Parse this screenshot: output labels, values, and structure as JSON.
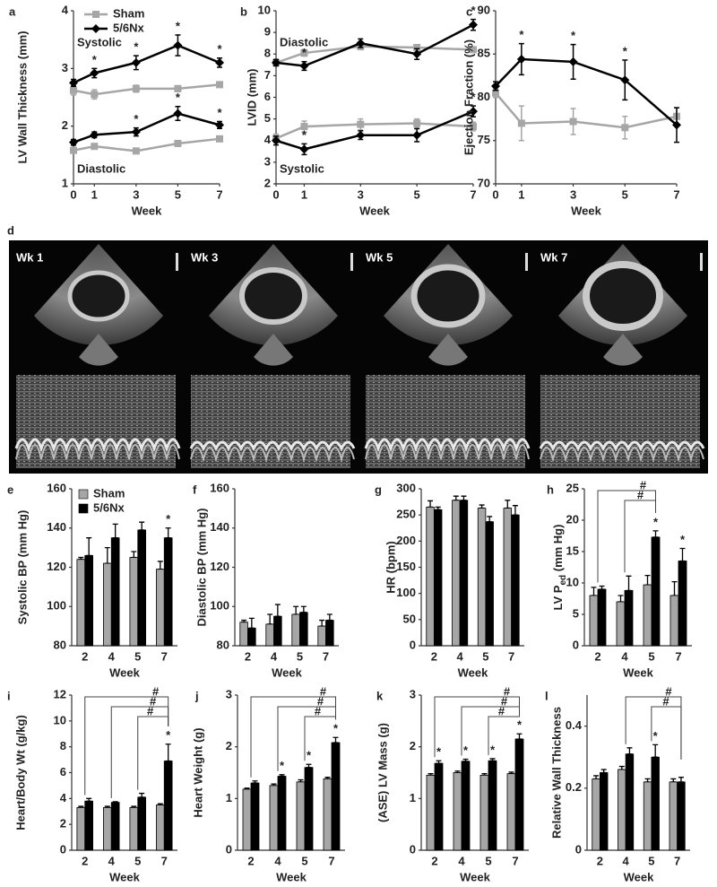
{
  "chart_data": [
    {
      "type": "line",
      "panel": "a",
      "ylabel": "LV Wall Thickness (mm)",
      "xlabel": "Week",
      "x": [
        0,
        1,
        3,
        5,
        7
      ],
      "xlim": [
        0,
        7
      ],
      "xticks": [
        0,
        1,
        3,
        5,
        7
      ],
      "ylim": [
        1,
        4
      ],
      "yticks": [
        1,
        2,
        3,
        4
      ],
      "star": "*",
      "legend": "top-left",
      "groups": [
        {
          "label": "Systolic",
          "series": [
            {
              "name": "Sham",
              "color": "#a6a6a6",
              "marker": "square",
              "values": [
                2.62,
                2.55,
                2.65,
                2.65,
                2.72
              ],
              "errors": [
                0.08,
                0.08,
                0.06,
                0.05,
                0.04
              ],
              "significant": [
                false,
                false,
                false,
                false,
                false
              ]
            },
            {
              "name": "5/6Nx",
              "color": "#000000",
              "marker": "diamond",
              "values": [
                2.75,
                2.92,
                3.1,
                3.4,
                3.1
              ],
              "errors": [
                0.06,
                0.08,
                0.12,
                0.18,
                0.08
              ],
              "significant": [
                false,
                true,
                true,
                true,
                true
              ]
            }
          ]
        },
        {
          "label": "Diastolic",
          "series": [
            {
              "color": "#a6a6a6",
              "marker": "square",
              "values": [
                1.58,
                1.65,
                1.57,
                1.7,
                1.78
              ],
              "errors": [
                0.03,
                0.03,
                0.03,
                0.03,
                0.03
              ],
              "significant": [
                false,
                false,
                false,
                false,
                false
              ]
            },
            {
              "color": "#000000",
              "marker": "diamond",
              "values": [
                1.72,
                1.85,
                1.9,
                2.22,
                2.02
              ],
              "errors": [
                0.05,
                0.05,
                0.07,
                0.12,
                0.06
              ],
              "significant": [
                false,
                false,
                true,
                true,
                true
              ]
            }
          ]
        }
      ]
    },
    {
      "type": "line",
      "panel": "b",
      "ylabel": "LVID (mm)",
      "xlabel": "Week",
      "x": [
        0,
        1,
        3,
        5,
        7
      ],
      "xlim": [
        0,
        7
      ],
      "xticks": [
        0,
        1,
        3,
        5,
        7
      ],
      "ylim": [
        2,
        10
      ],
      "yticks": [
        2,
        3,
        4,
        5,
        6,
        7,
        8,
        9,
        10
      ],
      "star": "*",
      "groups": [
        {
          "label": "Diastolic",
          "series": [
            {
              "color": "#a6a6a6",
              "marker": "square",
              "values": [
                7.6,
                8.05,
                8.35,
                8.3,
                8.2
              ],
              "errors": [
                0.1,
                0.15,
                0.15,
                0.1,
                0.1
              ],
              "significant": [
                false,
                false,
                false,
                false,
                false
              ]
            },
            {
              "color": "#000000",
              "marker": "diamond",
              "values": [
                7.6,
                7.45,
                8.5,
                8.0,
                9.35
              ],
              "errors": [
                0.15,
                0.2,
                0.2,
                0.25,
                0.25
              ],
              "significant": [
                false,
                true,
                false,
                false,
                true
              ]
            }
          ]
        },
        {
          "label": "Systolic",
          "series": [
            {
              "color": "#a6a6a6",
              "marker": "square",
              "values": [
                4.1,
                4.65,
                4.75,
                4.8,
                4.65
              ],
              "errors": [
                0.2,
                0.25,
                0.25,
                0.2,
                0.2
              ],
              "significant": [
                false,
                false,
                false,
                false,
                false
              ]
            },
            {
              "color": "#000000",
              "marker": "diamond",
              "values": [
                4.0,
                3.6,
                4.25,
                4.25,
                5.35
              ],
              "errors": [
                0.2,
                0.25,
                0.2,
                0.3,
                0.25
              ],
              "significant": [
                false,
                true,
                false,
                false,
                true
              ]
            }
          ]
        }
      ]
    },
    {
      "type": "line",
      "panel": "c",
      "ylabel": "Ejection Fraction (%)",
      "xlabel": "Week",
      "x": [
        0,
        1,
        3,
        5,
        7
      ],
      "xlim": [
        0,
        7
      ],
      "xticks": [
        0,
        1,
        3,
        5,
        7
      ],
      "ylim": [
        70,
        90
      ],
      "yticks": [
        70,
        75,
        80,
        85,
        90
      ],
      "star": "*",
      "groups": [
        {
          "series": [
            {
              "color": "#a6a6a6",
              "marker": "square",
              "values": [
                80.5,
                77,
                77.2,
                76.5,
                77.8
              ],
              "errors": [
                0.5,
                2,
                1.5,
                1.3,
                1
              ],
              "significant": [
                false,
                false,
                false,
                false,
                false
              ]
            },
            {
              "color": "#000000",
              "marker": "diamond",
              "values": [
                81.3,
                84.4,
                84.1,
                82,
                76.8
              ],
              "errors": [
                0.5,
                1.8,
                2,
                2.3,
                2
              ],
              "significant": [
                false,
                true,
                true,
                true,
                false
              ]
            }
          ]
        }
      ]
    },
    {
      "type": "bar",
      "panel": "e",
      "ylabel": "Systolic BP (mm Hg)",
      "xlabel": "Week",
      "categories": [
        "2",
        "4",
        "5",
        "7"
      ],
      "ylim": [
        80,
        160
      ],
      "yticks": [
        80,
        100,
        120,
        140,
        160
      ],
      "star": "*",
      "legend": "top-left",
      "series": [
        {
          "name": "Sham",
          "color": "#a6a6a6",
          "values": [
            124,
            122,
            125,
            119
          ],
          "errors": [
            1,
            8,
            3,
            4
          ],
          "significant": [
            false,
            false,
            false,
            false
          ]
        },
        {
          "name": "5/6Nx",
          "color": "#000000",
          "values": [
            126,
            135,
            139,
            135
          ],
          "errors": [
            9,
            7,
            4,
            5
          ],
          "significant": [
            false,
            false,
            false,
            true
          ]
        }
      ]
    },
    {
      "type": "bar",
      "panel": "f",
      "ylabel": "Diastolic BP (mm Hg)",
      "xlabel": "Week",
      "categories": [
        "2",
        "4",
        "5",
        "7"
      ],
      "ylim": [
        80,
        160
      ],
      "yticks": [
        80,
        100,
        120,
        140,
        160
      ],
      "series": [
        {
          "color": "#a6a6a6",
          "values": [
            92,
            91,
            96,
            90
          ],
          "errors": [
            1,
            5,
            4,
            3
          ]
        },
        {
          "color": "#000000",
          "values": [
            89,
            95,
            97,
            93
          ],
          "errors": [
            5,
            6,
            3,
            3
          ]
        }
      ]
    },
    {
      "type": "bar",
      "panel": "g",
      "ylabel": "HR (bpm)",
      "xlabel": "Week",
      "categories": [
        "2",
        "4",
        "5",
        "7"
      ],
      "ylim": [
        0,
        300
      ],
      "yticks": [
        0,
        50,
        100,
        150,
        200,
        250,
        300
      ],
      "series": [
        {
          "color": "#a6a6a6",
          "values": [
            265,
            278,
            263,
            263
          ],
          "errors": [
            12,
            8,
            6,
            15
          ]
        },
        {
          "color": "#000000",
          "values": [
            260,
            278,
            237,
            250
          ],
          "errors": [
            5,
            8,
            10,
            18
          ]
        }
      ]
    },
    {
      "type": "bar",
      "panel": "h",
      "ylabel": "LV P",
      "ylabel_sub": "ed",
      "ylabel_unit": " (mm Hg)",
      "xlabel": "Week",
      "categories": [
        "2",
        "4",
        "5",
        "7"
      ],
      "ylim": [
        0,
        25
      ],
      "yticks": [
        0,
        5,
        10,
        15,
        20,
        25
      ],
      "star": "*",
      "hash": "#",
      "comparisons": [
        [
          "2",
          "5"
        ],
        [
          "4",
          "5"
        ]
      ],
      "series": [
        {
          "color": "#a6a6a6",
          "values": [
            8,
            7,
            9.7,
            8
          ],
          "errors": [
            1.3,
            1,
            1.5,
            2.2
          ]
        },
        {
          "color": "#000000",
          "values": [
            9,
            8.8,
            17.3,
            13.5
          ],
          "errors": [
            0.5,
            2.3,
            1,
            2
          ],
          "significant": [
            false,
            false,
            true,
            true
          ]
        }
      ]
    },
    {
      "type": "bar",
      "panel": "i",
      "ylabel": "Heart/Body Wt (g/kg)",
      "xlabel": "Week",
      "categories": [
        "2",
        "4",
        "5",
        "7"
      ],
      "ylim": [
        0,
        12
      ],
      "yticks": [
        0,
        2,
        4,
        6,
        8,
        10,
        12
      ],
      "star": "*",
      "hash": "#",
      "comparisons": [
        [
          "2",
          "7"
        ],
        [
          "4",
          "7"
        ],
        [
          "5",
          "7"
        ]
      ],
      "series": [
        {
          "color": "#a6a6a6",
          "values": [
            3.3,
            3.3,
            3.3,
            3.5
          ],
          "errors": [
            0.1,
            0.1,
            0.1,
            0.1
          ]
        },
        {
          "color": "#000000",
          "values": [
            3.8,
            3.7,
            4.1,
            6.9
          ],
          "errors": [
            0.2,
            0.05,
            0.3,
            1.3
          ],
          "significant": [
            false,
            false,
            false,
            true
          ]
        }
      ]
    },
    {
      "type": "bar",
      "panel": "j",
      "ylabel": "Heart Weight (g)",
      "xlabel": "Week",
      "categories": [
        "2",
        "4",
        "5",
        "7"
      ],
      "ylim": [
        0,
        3
      ],
      "yticks": [
        0,
        1,
        2,
        3
      ],
      "star": "*",
      "hash": "#",
      "comparisons": [
        [
          "2",
          "7"
        ],
        [
          "4",
          "7"
        ],
        [
          "5",
          "7"
        ]
      ],
      "series": [
        {
          "color": "#a6a6a6",
          "values": [
            1.18,
            1.25,
            1.32,
            1.38
          ],
          "errors": [
            0.02,
            0.03,
            0.04,
            0.03
          ]
        },
        {
          "color": "#000000",
          "values": [
            1.3,
            1.43,
            1.6,
            2.08
          ],
          "errors": [
            0.04,
            0.03,
            0.06,
            0.1
          ],
          "significant": [
            false,
            true,
            true,
            true
          ]
        }
      ]
    },
    {
      "type": "bar",
      "panel": "k",
      "ylabel": "(ASE) LV Mass (g)",
      "xlabel": "Week",
      "categories": [
        "2",
        "4",
        "5",
        "7"
      ],
      "ylim": [
        0,
        3
      ],
      "yticks": [
        0,
        1,
        2,
        3
      ],
      "star": "*",
      "hash": "#",
      "comparisons": [
        [
          "2",
          "7"
        ],
        [
          "4",
          "7"
        ],
        [
          "5",
          "7"
        ]
      ],
      "series": [
        {
          "color": "#a6a6a6",
          "values": [
            1.45,
            1.5,
            1.45,
            1.48
          ],
          "errors": [
            0.03,
            0.03,
            0.03,
            0.03
          ]
        },
        {
          "color": "#000000",
          "values": [
            1.68,
            1.72,
            1.73,
            2.15
          ],
          "errors": [
            0.05,
            0.04,
            0.04,
            0.1
          ],
          "significant": [
            true,
            true,
            true,
            true
          ]
        }
      ]
    },
    {
      "type": "bar",
      "panel": "l",
      "ylabel": "Relative Wall Thickness",
      "xlabel": "Week",
      "categories": [
        "2",
        "4",
        "5",
        "7"
      ],
      "ylim": [
        0,
        0.5
      ],
      "yticks": [
        0,
        0.2,
        0.4
      ],
      "star": "*",
      "hash": "#",
      "comparisons": [
        [
          "4",
          "7"
        ],
        [
          "5",
          "7"
        ]
      ],
      "series": [
        {
          "color": "#a6a6a6",
          "values": [
            0.23,
            0.26,
            0.22,
            0.22
          ],
          "errors": [
            0.01,
            0.01,
            0.01,
            0.01
          ]
        },
        {
          "color": "#000000",
          "values": [
            0.25,
            0.31,
            0.3,
            0.22
          ],
          "errors": [
            0.01,
            0.02,
            0.04,
            0.015
          ],
          "significant": [
            false,
            false,
            true,
            false
          ]
        }
      ]
    }
  ],
  "echo": {
    "panel": "d",
    "frames": [
      "Wk 1",
      "Wk 3",
      "Wk 5",
      "Wk 7"
    ]
  }
}
